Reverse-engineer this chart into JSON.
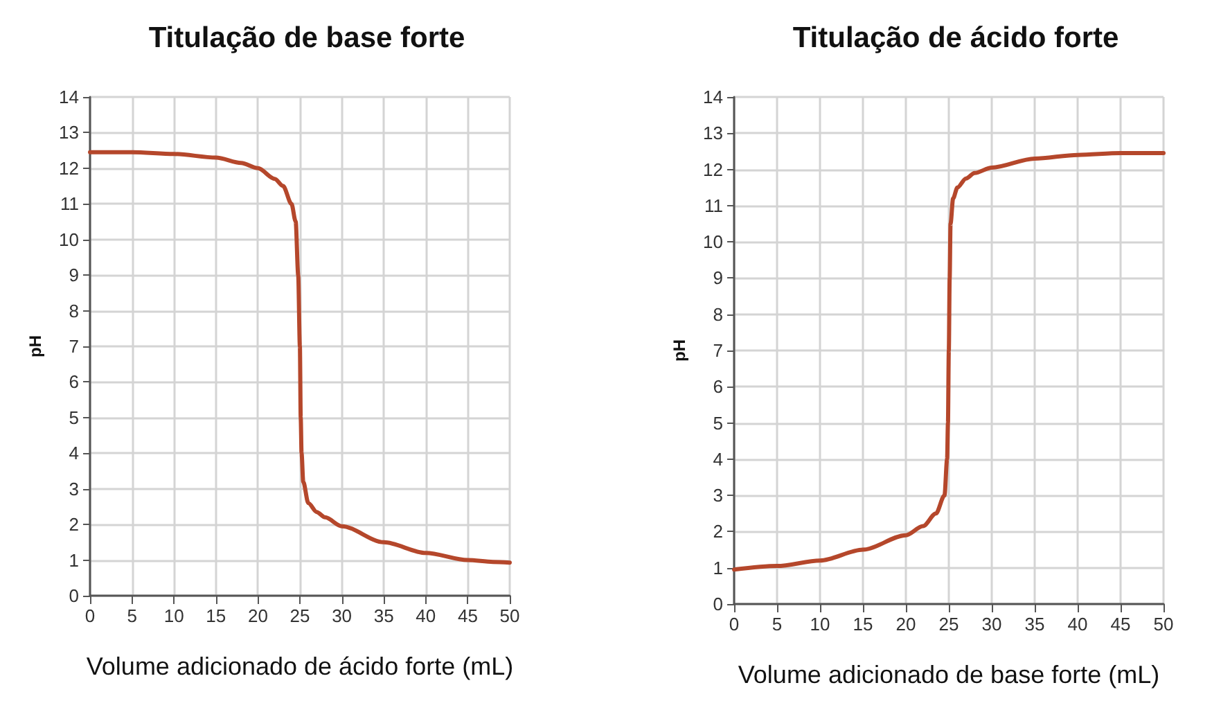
{
  "chart_data": [
    {
      "type": "line",
      "title": "Titulação de base forte",
      "xlabel": "Volume adicionado de ácido forte (mL)",
      "ylabel": "pH",
      "xlim": [
        0,
        50
      ],
      "xticks": [
        0,
        5,
        10,
        15,
        20,
        25,
        30,
        35,
        40,
        45,
        50
      ],
      "ylim": [
        0,
        14
      ],
      "yticks": [
        0,
        1,
        2,
        3,
        4,
        5,
        6,
        7,
        8,
        9,
        10,
        11,
        12,
        13,
        14
      ],
      "grid": true,
      "marker": "none",
      "line_style": "solid",
      "series": [
        {
          "color": "#b5472b",
          "x": [
            0,
            5,
            10,
            15,
            18,
            20,
            22,
            23,
            24,
            24.5,
            24.8,
            25,
            25.1,
            25.2,
            25.4,
            26,
            27,
            28,
            30,
            35,
            40,
            45,
            48,
            50
          ],
          "values": [
            12.45,
            12.45,
            12.4,
            12.3,
            12.15,
            12.0,
            11.7,
            11.5,
            11.0,
            10.5,
            9,
            7,
            5,
            4,
            3.2,
            2.6,
            2.35,
            2.2,
            1.95,
            1.5,
            1.2,
            1.0,
            0.95,
            0.93
          ]
        }
      ]
    },
    {
      "type": "line",
      "title": "Titulação de ácido forte",
      "xlabel": "Volume adicionado de base forte (mL)",
      "ylabel": "pH",
      "xlim": [
        0,
        50
      ],
      "xticks": [
        0,
        5,
        10,
        15,
        20,
        25,
        30,
        35,
        40,
        45,
        50
      ],
      "ylim": [
        0,
        14
      ],
      "yticks": [
        0,
        1,
        2,
        3,
        4,
        5,
        6,
        7,
        8,
        9,
        10,
        11,
        12,
        13,
        14
      ],
      "grid": true,
      "marker": "none",
      "line_style": "solid",
      "series": [
        {
          "color": "#b5472b",
          "x": [
            0,
            5,
            10,
            15,
            20,
            22,
            23.5,
            24.5,
            24.8,
            24.9,
            25,
            25.1,
            25.2,
            25.5,
            26,
            27,
            28,
            30,
            35,
            40,
            45,
            50
          ],
          "values": [
            0.95,
            1.05,
            1.2,
            1.5,
            1.9,
            2.15,
            2.5,
            3.0,
            4,
            5,
            7,
            9,
            10.5,
            11.2,
            11.5,
            11.75,
            11.9,
            12.05,
            12.3,
            12.4,
            12.45,
            12.45
          ]
        }
      ]
    }
  ]
}
